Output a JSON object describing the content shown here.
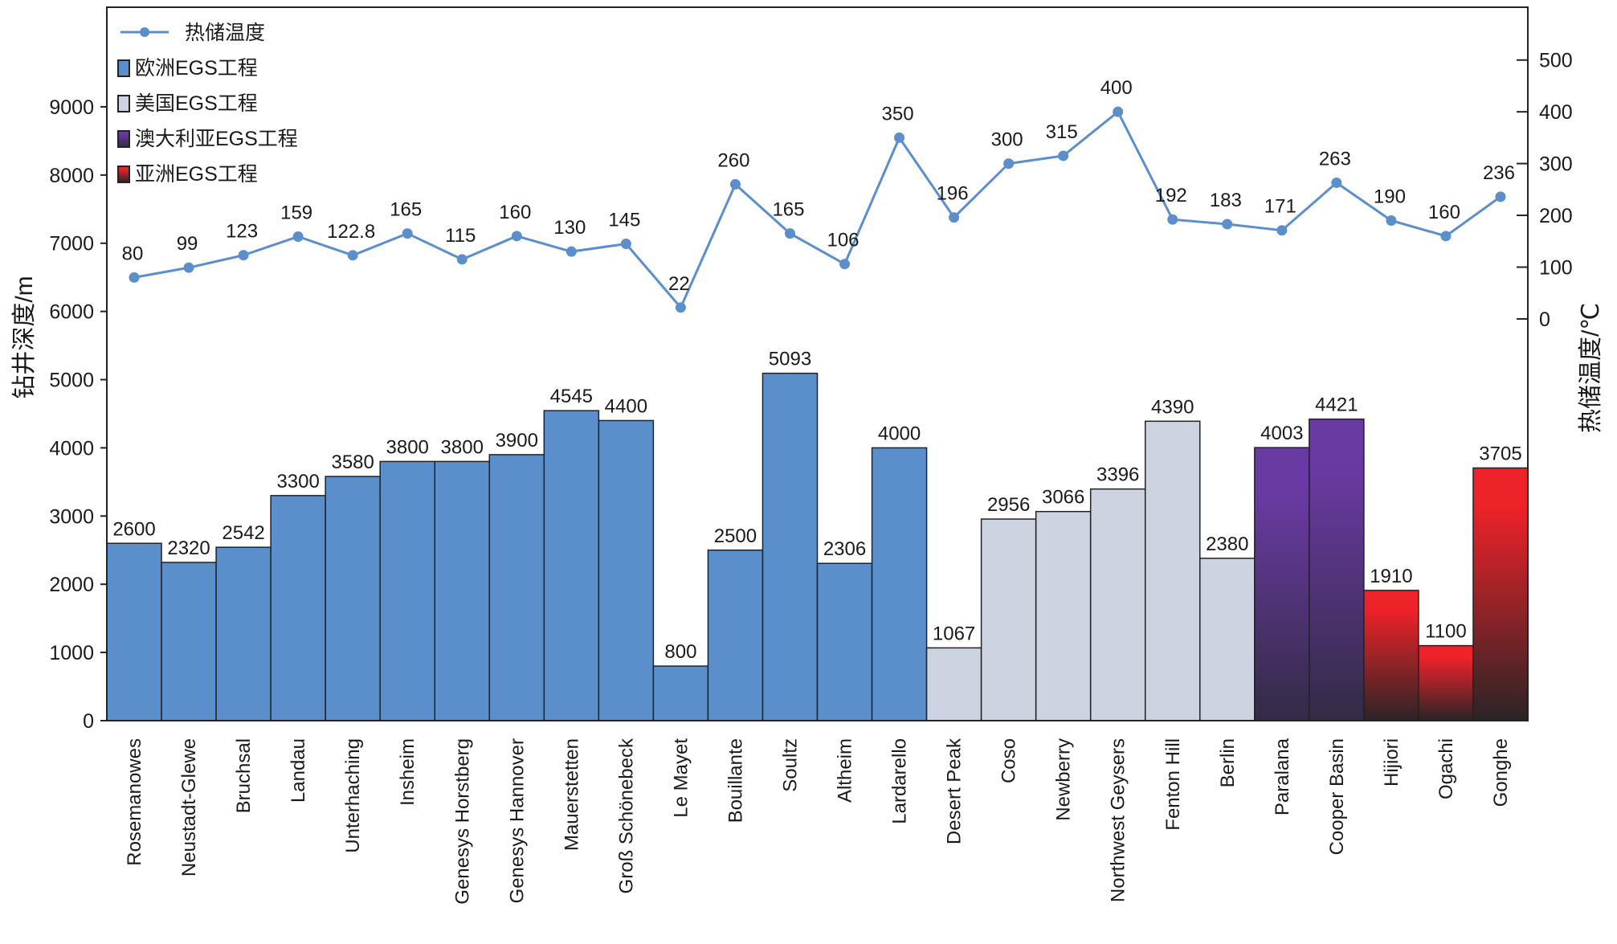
{
  "chart_data": {
    "type": "bar+line",
    "ylabel": "钻井深度/m",
    "y2label": "热储温度/℃",
    "ylim": [
      0,
      10460
    ],
    "yticks": [
      0,
      1000,
      2000,
      3000,
      4000,
      5000,
      6000,
      7000,
      8000,
      9000
    ],
    "y2lim": [
      -776,
      602
    ],
    "y2ticks": [
      0,
      100,
      200,
      300,
      400,
      500
    ],
    "legend_position": "top-left",
    "grid": false,
    "legend": [
      {
        "label": "热储温度",
        "kind": "line",
        "color": "#5b8fcc"
      },
      {
        "label": "欧洲EGS工程",
        "kind": "box",
        "group": "europe"
      },
      {
        "label": "美国EGS工程",
        "kind": "box",
        "group": "usa"
      },
      {
        "label": "澳大利亚EGS工程",
        "kind": "box",
        "group": "australia"
      },
      {
        "label": "亚洲EGS工程",
        "kind": "box",
        "group": "asia"
      }
    ],
    "group_colors": {
      "europe": [
        "#5b8fcc",
        "#5b8fcc"
      ],
      "usa": [
        "#cdd3e0",
        "#cdd3e0"
      ],
      "australia": [
        "#6a3aa3",
        "#332b45"
      ],
      "asia": [
        "#ee2229",
        "#2a2426"
      ]
    },
    "line_color": "#5b8fcc",
    "categories": [
      "Rosemanowes",
      "Neustadt-Glewe",
      "Bruchsal",
      "Landau",
      "Unterhaching",
      "Insheim",
      "Genesys Horstberg",
      "Genesys Hannover",
      "Mauerstetten",
      "Groß Schönebeck",
      "Le Mayet",
      "Bouillante",
      "Soultz",
      "Altheim",
      "Lardarello",
      "Desert Peak",
      "Coso",
      "Newberry",
      "Northwest Geysers",
      "Fenton Hill",
      "Berlin",
      "Paralana",
      "Cooper Basin",
      "Hijiori",
      "Ogachi",
      "Gonghe"
    ],
    "groups": [
      "europe",
      "europe",
      "europe",
      "europe",
      "europe",
      "europe",
      "europe",
      "europe",
      "europe",
      "europe",
      "europe",
      "europe",
      "europe",
      "europe",
      "europe",
      "usa",
      "usa",
      "usa",
      "usa",
      "usa",
      "usa",
      "australia",
      "australia",
      "asia",
      "asia",
      "asia"
    ],
    "series": [
      {
        "name": "钻井深度",
        "axis": "left",
        "type": "bar",
        "values": [
          2600,
          2320,
          2542,
          3300,
          3580,
          3800,
          3800,
          3900,
          4545,
          4400,
          800,
          2500,
          5093,
          2306,
          4000,
          1067,
          2956,
          3066,
          3396,
          4390,
          2380,
          4003,
          4421,
          1910,
          1100,
          3705
        ]
      },
      {
        "name": "热储温度",
        "axis": "right",
        "type": "line",
        "values": [
          80,
          99,
          123,
          159,
          122.8,
          165,
          115,
          160,
          130,
          145,
          22,
          260,
          165,
          106,
          350,
          196,
          300,
          315,
          400,
          192,
          183,
          171,
          263,
          190,
          160,
          236
        ]
      }
    ]
  }
}
